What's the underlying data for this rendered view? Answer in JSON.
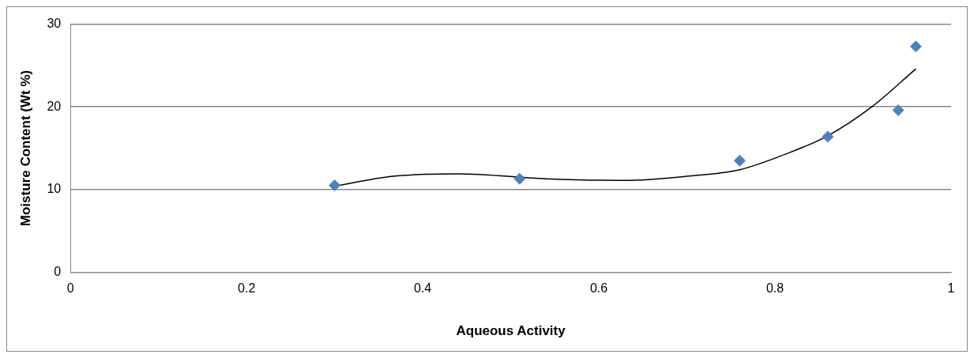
{
  "chart_data": {
    "type": "scatter",
    "xlabel": "Aqueous Activity",
    "ylabel": "Moisture Content (Wt %)",
    "xlim": [
      0,
      1
    ],
    "xticks": [
      0,
      0.2,
      0.4,
      0.6,
      0.8,
      1
    ],
    "ylim": [
      0,
      30
    ],
    "yticks": [
      0,
      10,
      20,
      30
    ],
    "grid": "y",
    "legend": false,
    "series": [
      {
        "type": "scatter",
        "color": "#4f81bd",
        "marker": "diamond",
        "x": [
          0.3,
          0.51,
          0.76,
          0.86,
          0.94,
          0.96
        ],
        "values": [
          10.5,
          11.3,
          13.5,
          16.4,
          19.6,
          27.3
        ]
      },
      {
        "type": "line",
        "color": "#000000",
        "marker": "none",
        "x": [
          0.3,
          0.366,
          0.44,
          0.54,
          0.63,
          0.7,
          0.76,
          0.81,
          0.86,
          0.91,
          0.96
        ],
        "values": [
          10.4,
          11.6,
          11.9,
          11.3,
          11.1,
          11.6,
          12.4,
          14.2,
          16.5,
          20.0,
          24.6
        ]
      }
    ]
  }
}
